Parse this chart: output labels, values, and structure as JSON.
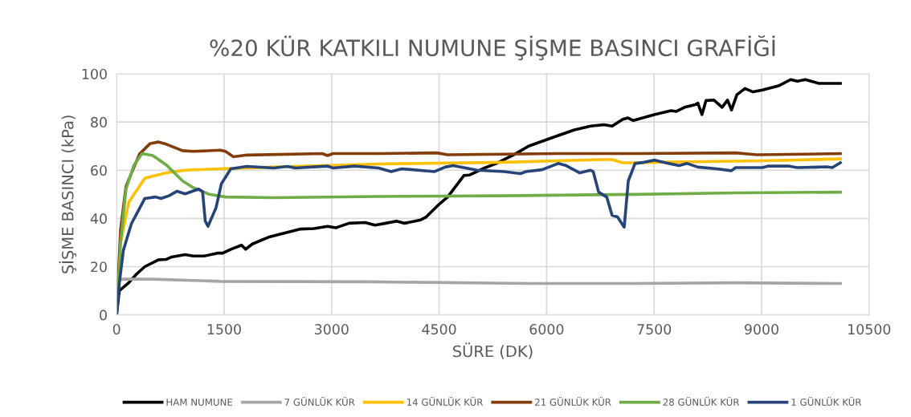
{
  "chart_data": {
    "type": "line",
    "title": "%20 KÜR KATKILI NUMUNE ŞİŞME BASINCI GRAFİĞİ",
    "xlabel": "SÜRE (DK)",
    "ylabel": "ŞİŞME BASINCI (kPa)",
    "xlim": [
      0,
      10500
    ],
    "ylim": [
      0,
      100
    ],
    "xticks": [
      0,
      1500,
      3000,
      4500,
      6000,
      7500,
      9000,
      10500
    ],
    "yticks": [
      0,
      20,
      40,
      60,
      80,
      100
    ],
    "grid": true,
    "legend": "bottom",
    "marker": "none",
    "line_style": "solid",
    "series": [
      {
        "name": "HAM NUMUNE",
        "color": "#000000",
        "x": [
          0,
          37,
          169,
          281,
          394,
          581,
          694,
          769,
          956,
          1069,
          1219,
          1406,
          1481,
          1594,
          1744,
          1800,
          1894,
          2119,
          2381,
          2569,
          2756,
          2944,
          3056,
          3244,
          3469,
          3605,
          3755,
          3906,
          4019,
          4244,
          4320,
          4508,
          4620,
          4846,
          4921,
          5147,
          5297,
          5560,
          5748,
          5974,
          6162,
          6387,
          6613,
          6801,
          6914,
          7064,
          7136,
          7211,
          7511,
          7736,
          7811,
          7924,
          8074,
          8111,
          8168,
          8224,
          8336,
          8449,
          8524,
          8580,
          8655,
          8768,
          8880,
          9011,
          9236,
          9405,
          9499,
          9611,
          9799,
          10099
        ],
        "values": [
          0,
          10,
          13.3,
          17,
          20,
          22.8,
          23,
          24,
          25,
          24.4,
          24.4,
          25.6,
          25.6,
          27.2,
          28.9,
          27.2,
          29.4,
          32.2,
          34.2,
          35.6,
          35.8,
          36.7,
          36.1,
          38,
          38.3,
          37.2,
          38,
          38.9,
          38,
          39.4,
          40.6,
          46.1,
          48.9,
          57.8,
          58,
          61.1,
          62.8,
          66.7,
          70,
          72.4,
          74.4,
          76.7,
          78.3,
          78.9,
          78.3,
          81.1,
          81.7,
          80.6,
          83.1,
          84.7,
          84.4,
          86.1,
          87.2,
          87.8,
          83.1,
          88.9,
          89.1,
          86.1,
          89.1,
          85,
          91.3,
          93.9,
          92.5,
          93.3,
          95,
          97.6,
          96.9,
          97.6,
          96,
          96
        ]
      },
      {
        "name": "7 GÜNLÜK KÜR",
        "color": "#a5a5a5",
        "x": [
          0,
          37,
          94,
          500,
          1444,
          3530,
          5786,
          7200,
          8636,
          10099
        ],
        "values": [
          10,
          14.4,
          14.8,
          14.8,
          13.9,
          13.7,
          13,
          13,
          13.3,
          13
        ]
      },
      {
        "name": "14 GÜNLÜK KÜR",
        "color": "#ffc000",
        "x": [
          56,
          169,
          394,
          694,
          956,
          1444,
          2194,
          3656,
          5410,
          6764,
          6914,
          7064,
          7252,
          7511,
          9011,
          10099
        ],
        "values": [
          30,
          46.7,
          56.7,
          58.9,
          60,
          60.6,
          61.3,
          62.6,
          63.3,
          64.4,
          64.4,
          63.1,
          63.1,
          63.3,
          63.9,
          64.7
        ]
      },
      {
        "name": "21 GÜNLÜK KÜR",
        "color": "#843c0c",
        "x": [
          0,
          56,
          131,
          319,
          469,
          581,
          694,
          919,
          1069,
          1444,
          1519,
          1631,
          1819,
          2869,
          2944,
          3019,
          3656,
          4470,
          4620,
          6162,
          7252,
          8636,
          8936,
          10099
        ],
        "values": [
          2,
          35.6,
          53.3,
          66.7,
          71.1,
          71.7,
          70.8,
          68.1,
          67.8,
          68.3,
          67.8,
          65.6,
          66.3,
          66.9,
          66.1,
          66.9,
          66.9,
          67.2,
          66.4,
          66.9,
          66.9,
          67.2,
          66.4,
          66.9
        ]
      },
      {
        "name": "28 GÜNLÜK KÜR",
        "color": "#70ad47",
        "x": [
          0,
          56,
          131,
          244,
          356,
          506,
          694,
          919,
          1069,
          1294,
          1519,
          2194,
          3656,
          5410,
          7252,
          8636,
          10099
        ],
        "values": [
          0,
          30,
          52.2,
          62.2,
          66.9,
          66.1,
          62.2,
          55.6,
          52.8,
          50,
          48.9,
          48.6,
          49.1,
          49.4,
          50,
          50.6,
          50.9
        ]
      },
      {
        "name": "1 GÜNLÜK KÜR",
        "color": "#264478",
        "x": [
          0,
          37,
          94,
          206,
          394,
          544,
          619,
          731,
          844,
          956,
          1144,
          1200,
          1237,
          1275,
          1387,
          1462,
          1594,
          1819,
          2194,
          2381,
          2494,
          2944,
          3019,
          3319,
          3656,
          3831,
          3981,
          4432,
          4583,
          4696,
          5034,
          5410,
          5636,
          5711,
          5936,
          6162,
          6275,
          6463,
          6613,
          6651,
          6726,
          6839,
          6914,
          6989,
          7083,
          7140,
          7234,
          7361,
          7511,
          7661,
          7849,
          7961,
          8111,
          8374,
          8580,
          8636,
          9011,
          9086,
          9386,
          9499,
          9911,
          9986,
          10099
        ],
        "values": [
          0,
          12.8,
          26.7,
          37.8,
          48.3,
          48.9,
          48.3,
          49.4,
          51.3,
          50.2,
          52.2,
          51.1,
          38.9,
          36.7,
          44.4,
          54.4,
          60.6,
          61.6,
          60.9,
          61.6,
          60.9,
          61.7,
          60.9,
          61.7,
          60.9,
          59.4,
          60.6,
          59.4,
          61.3,
          61.9,
          60,
          59.4,
          58.6,
          59.4,
          60.2,
          62.8,
          61.9,
          58.9,
          60,
          59.4,
          50.9,
          48.9,
          41.3,
          40.6,
          36.4,
          55.6,
          62.8,
          63.3,
          64.2,
          63.1,
          61.9,
          62.8,
          61.3,
          60.6,
          59.8,
          61.1,
          61.1,
          61.7,
          61.7,
          61.1,
          61.4,
          61.1,
          63.1
        ]
      }
    ]
  }
}
